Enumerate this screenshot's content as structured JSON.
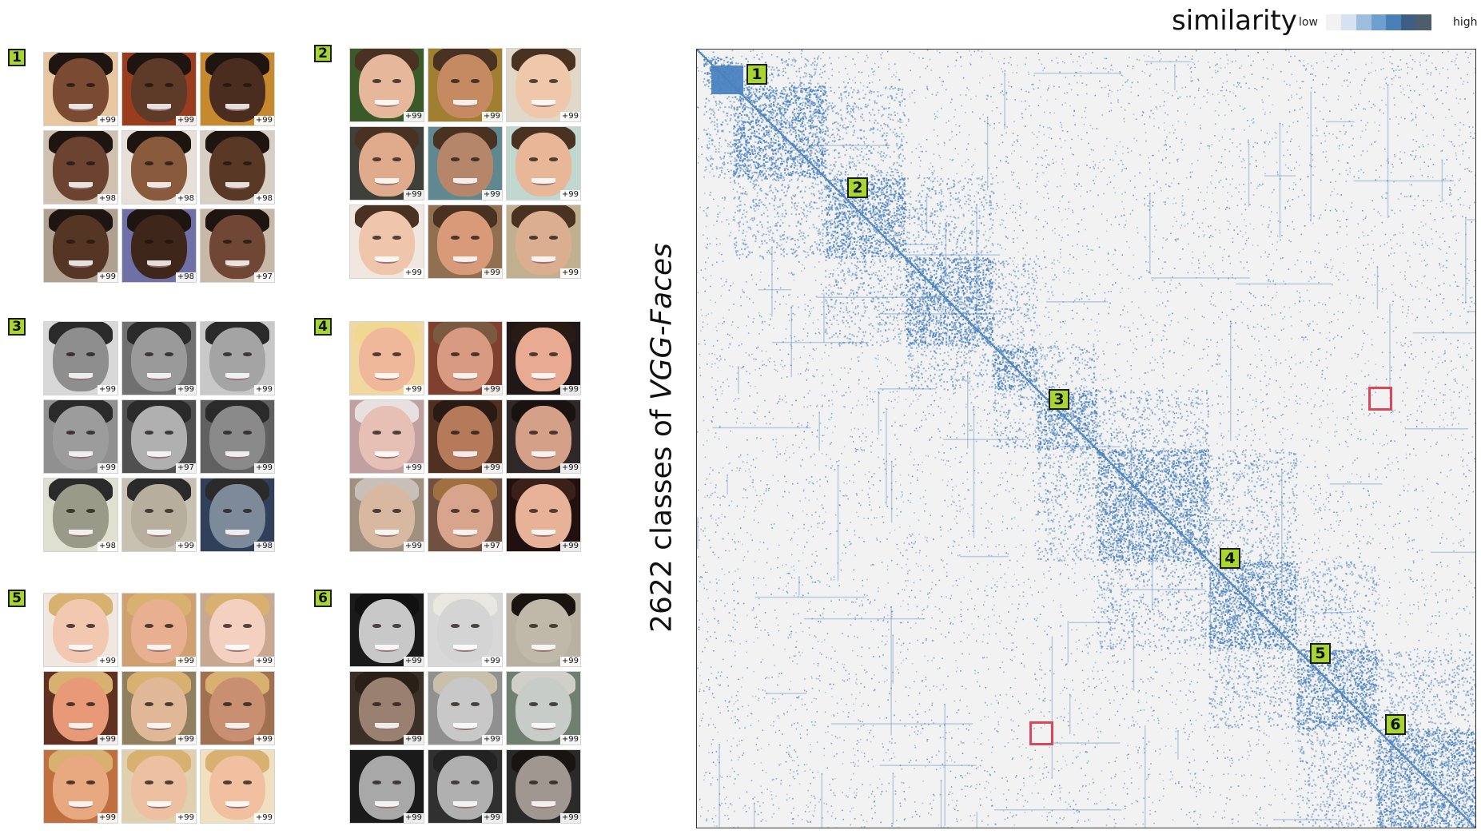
{
  "legend": {
    "title": "similarity",
    "low_label": "low",
    "high_label": "high",
    "colors": [
      "#f2f2f2",
      "#d6e2f0",
      "#9fbddd",
      "#6f9fcf",
      "#4a7fb8",
      "#3f5f82",
      "#4e5d6c"
    ]
  },
  "matrix": {
    "axis_label_prefix": "2622 classes of ",
    "axis_label_italic": "VGG-Faces",
    "background_color": "#f2f2f2",
    "point_color": "#4a82c0",
    "class_count": 2622,
    "cluster_markers": [
      "1",
      "2",
      "3",
      "4",
      "5",
      "6"
    ],
    "highlighted_regions_count": 2
  },
  "groups": [
    {
      "label": "1",
      "scores": [
        "+99",
        "+99",
        "+99",
        "+98",
        "+98",
        "+98",
        "+99",
        "+98",
        "+97"
      ]
    },
    {
      "label": "2",
      "scores": [
        "+99",
        "+99",
        "+99",
        "+99",
        "+99",
        "+99",
        "+99",
        "+99",
        "+99"
      ]
    },
    {
      "label": "3",
      "scores": [
        "+99",
        "+99",
        "+99",
        "+99",
        "+97",
        "+99",
        "+98",
        "+99",
        "+98"
      ]
    },
    {
      "label": "4",
      "scores": [
        "+99",
        "+99",
        "+99",
        "+99",
        "+99",
        "+99",
        "+99",
        "+97",
        "+99"
      ]
    },
    {
      "label": "5",
      "scores": [
        "+99",
        "+99",
        "+99",
        "+99",
        "+99",
        "+99",
        "+99",
        "+99",
        "+99"
      ]
    },
    {
      "label": "6",
      "scores": [
        "+99",
        "+99",
        "+99",
        "+99",
        "+99",
        "+99",
        "+99",
        "+99",
        "+99"
      ]
    }
  ]
}
